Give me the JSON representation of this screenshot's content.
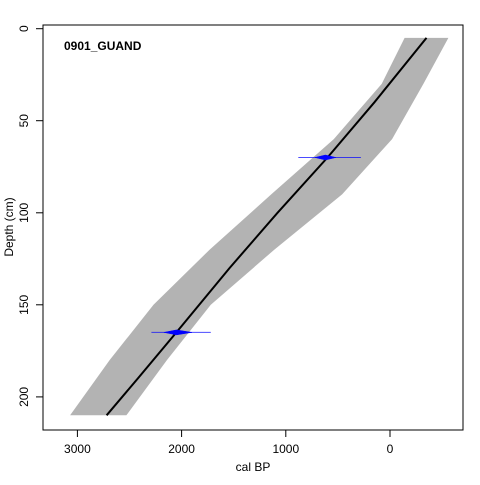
{
  "chart_data": {
    "type": "line",
    "title": "0901_GUAND",
    "xlabel": "cal BP",
    "ylabel": "Depth (cm)",
    "x_reversed": true,
    "y_reversed": true,
    "xlim": [
      3330,
      -700
    ],
    "ylim": [
      -2,
      218
    ],
    "x_ticks": [
      3000,
      2000,
      1000,
      0
    ],
    "y_ticks": [
      0,
      50,
      100,
      150,
      200
    ],
    "x_tick_labels": [
      "3000",
      "2000",
      "1000",
      "0"
    ],
    "y_tick_labels": [
      "0",
      "50",
      "100",
      "150",
      "200"
    ],
    "colors": {
      "envelope": "#b3b3b3",
      "median_line": "#000000",
      "dates": "#0000ff",
      "frame": "#000000"
    },
    "uncertainty_envelope": {
      "depth": [
        5,
        30,
        60,
        90,
        120,
        150,
        180,
        210
      ],
      "min_age": [
        -560,
        -320,
        -20,
        460,
        1110,
        1720,
        2140,
        2530
      ],
      "max_age": [
        -140,
        80,
        540,
        1140,
        1730,
        2270,
        2690,
        3070
      ]
    },
    "series": [
      {
        "depth": [
          5,
          40,
          70,
          100,
          130,
          165,
          190,
          210
        ],
        "age": [
          -350,
          150,
          600,
          1080,
          1540,
          2050,
          2420,
          2720
        ]
      }
    ],
    "dated_samples": [
      {
        "depth": 70,
        "age": 620,
        "range": [
          280,
          880
        ],
        "peak_range": [
          520,
          720
        ]
      },
      {
        "depth": 165,
        "age": 2050,
        "range": [
          1720,
          2290
        ],
        "peak_range": [
          1900,
          2170
        ]
      }
    ]
  }
}
